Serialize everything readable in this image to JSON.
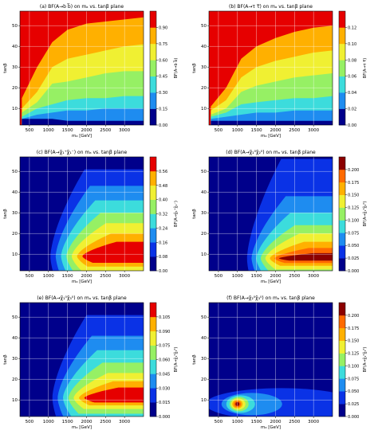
{
  "figure": {
    "x_label": "mₐ [GeV]",
    "y_label": "tanβ",
    "x_ticks": [
      500,
      1000,
      1500,
      2000,
      2500,
      3000
    ],
    "y_ticks": [
      10,
      20,
      30,
      40,
      50
    ],
    "x_range": [
      250,
      3500
    ],
    "y_range": [
      2,
      57
    ]
  },
  "colors": {
    "levels": [
      "#00008b",
      "#0a32e6",
      "#1e8cf0",
      "#3cdcdc",
      "#96f064",
      "#f0f032",
      "#ffb000",
      "#ff6a00",
      "#e60000",
      "#8b0000"
    ],
    "grid": "#ffffff"
  },
  "chart_data": [
    {
      "id": "a",
      "type": "heatmap",
      "title": "(a) BF(A→b b̅) on mₐ vs. tanβ plane",
      "colorbar_label": "BF(A→b b̅)",
      "colorbar_ticks": [
        "0.00",
        "0.15",
        "0.30",
        "0.45",
        "0.60",
        "0.75",
        "0.90"
      ],
      "levels": [
        0,
        0.15,
        0.3,
        0.45,
        0.6,
        0.75,
        0.9
      ],
      "ylim": [
        2,
        57
      ],
      "bands": [
        {
          "level": 0,
          "top_y": [
            5,
            5,
            5,
            4,
            4,
            4,
            4,
            4
          ]
        },
        {
          "level": 1,
          "top_y": [
            5,
            7,
            8,
            9,
            9,
            10,
            10,
            10
          ]
        },
        {
          "level": 2,
          "top_y": [
            6,
            10,
            12,
            14,
            15,
            15,
            16,
            16
          ]
        },
        {
          "level": 3,
          "top_y": [
            8,
            13,
            22,
            23,
            25,
            27,
            28,
            28
          ]
        },
        {
          "level": 4,
          "top_y": [
            10,
            18,
            30,
            34,
            36,
            38,
            40,
            41
          ]
        },
        {
          "level": 5,
          "top_y": [
            15,
            30,
            42,
            48,
            51,
            52,
            53,
            54
          ]
        }
      ],
      "bands_x": [
        300,
        700,
        1100,
        1500,
        2000,
        2500,
        3000,
        3500
      ]
    },
    {
      "id": "b",
      "type": "heatmap",
      "title": "(b) BF(A→τ τ̅) on mₐ vs. tanβ plane",
      "colorbar_label": "BF(A→τ τ̅)",
      "colorbar_ticks": [
        "0.00",
        "0.02",
        "0.04",
        "0.06",
        "0.08",
        "0.10",
        "0.12"
      ],
      "levels": [
        0,
        0.02,
        0.04,
        0.06,
        0.08,
        0.1,
        0.12,
        0.14
      ],
      "ylim": [
        2,
        57
      ],
      "bands": [
        {
          "level": 0,
          "top_y": [
            4,
            4,
            4,
            4,
            4,
            4,
            4,
            4
          ]
        },
        {
          "level": 1,
          "top_y": [
            5,
            6,
            7,
            8,
            8,
            9,
            9,
            9
          ]
        },
        {
          "level": 2,
          "top_y": [
            6,
            8,
            12,
            13,
            14,
            15,
            15,
            16
          ]
        },
        {
          "level": 3,
          "top_y": [
            7,
            10,
            18,
            21,
            23,
            25,
            26,
            27
          ]
        },
        {
          "level": 4,
          "top_y": [
            9,
            14,
            25,
            30,
            33,
            35,
            37,
            38
          ]
        },
        {
          "level": 5,
          "top_y": [
            11,
            20,
            34,
            40,
            44,
            47,
            49,
            50
          ]
        },
        {
          "level": 6,
          "top_y": [
            14,
            30,
            44,
            51,
            53,
            54,
            55,
            56
          ]
        }
      ],
      "bands_x": [
        300,
        700,
        1100,
        1500,
        2000,
        2500,
        3000,
        3500
      ]
    },
    {
      "id": "c",
      "type": "heatmap",
      "title": "(c) BF(A→χ̃₁⁺χ̃₁⁻) on mₐ vs. tanβ plane",
      "colorbar_label": "BF(A→χ̃₁⁺χ̃₁⁻)",
      "colorbar_ticks": [
        "0.00",
        "0.08",
        "0.16",
        "0.24",
        "0.32",
        "0.40",
        "0.48",
        "0.56"
      ],
      "levels": [
        0,
        0.08,
        0.16,
        0.24,
        0.32,
        0.4,
        0.48,
        0.56
      ],
      "ylim": [
        2,
        57
      ]
    },
    {
      "id": "d",
      "type": "heatmap",
      "title": "(d) BF(A→χ̃₁⁰χ̃₂⁰) on mₐ vs. tanβ plane",
      "colorbar_label": "BF(A→χ̃₁⁰χ̃₂⁰)",
      "colorbar_ticks": [
        "0.000",
        "0.025",
        "0.050",
        "0.075",
        "0.100",
        "0.125",
        "0.150",
        "0.175",
        "0.200"
      ],
      "levels": [
        0,
        0.025,
        0.05,
        0.075,
        0.1,
        0.125,
        0.15,
        0.175,
        0.2
      ],
      "ylim": [
        2,
        57
      ]
    },
    {
      "id": "e",
      "type": "heatmap",
      "title": "(e) BF(A→χ̃₁⁰χ̃₃⁰) on mₐ vs. tanβ plane",
      "colorbar_label": "BF(A→χ̃₁⁰χ̃₃⁰)",
      "colorbar_ticks": [
        "0.000",
        "0.015",
        "0.030",
        "0.045",
        "0.060",
        "0.075",
        "0.090",
        "0.105"
      ],
      "levels": [
        0,
        0.015,
        0.03,
        0.045,
        0.06,
        0.075,
        0.09,
        0.105
      ],
      "ylim": [
        2,
        57
      ]
    },
    {
      "id": "f",
      "type": "heatmap",
      "title": "(f) BF(A→χ̃₂⁰χ̃₃⁰) on mₐ vs. tanβ plane",
      "colorbar_label": "BF(A→χ̃₂⁰χ̃₃⁰)",
      "colorbar_ticks": [
        "0.000",
        "0.025",
        "0.050",
        "0.075",
        "0.100",
        "0.125",
        "0.150",
        "0.175",
        "0.200"
      ],
      "levels": [
        0,
        0.025,
        0.05,
        0.075,
        0.1,
        0.125,
        0.15,
        0.175,
        0.2
      ],
      "ylim": [
        2,
        57
      ]
    }
  ]
}
